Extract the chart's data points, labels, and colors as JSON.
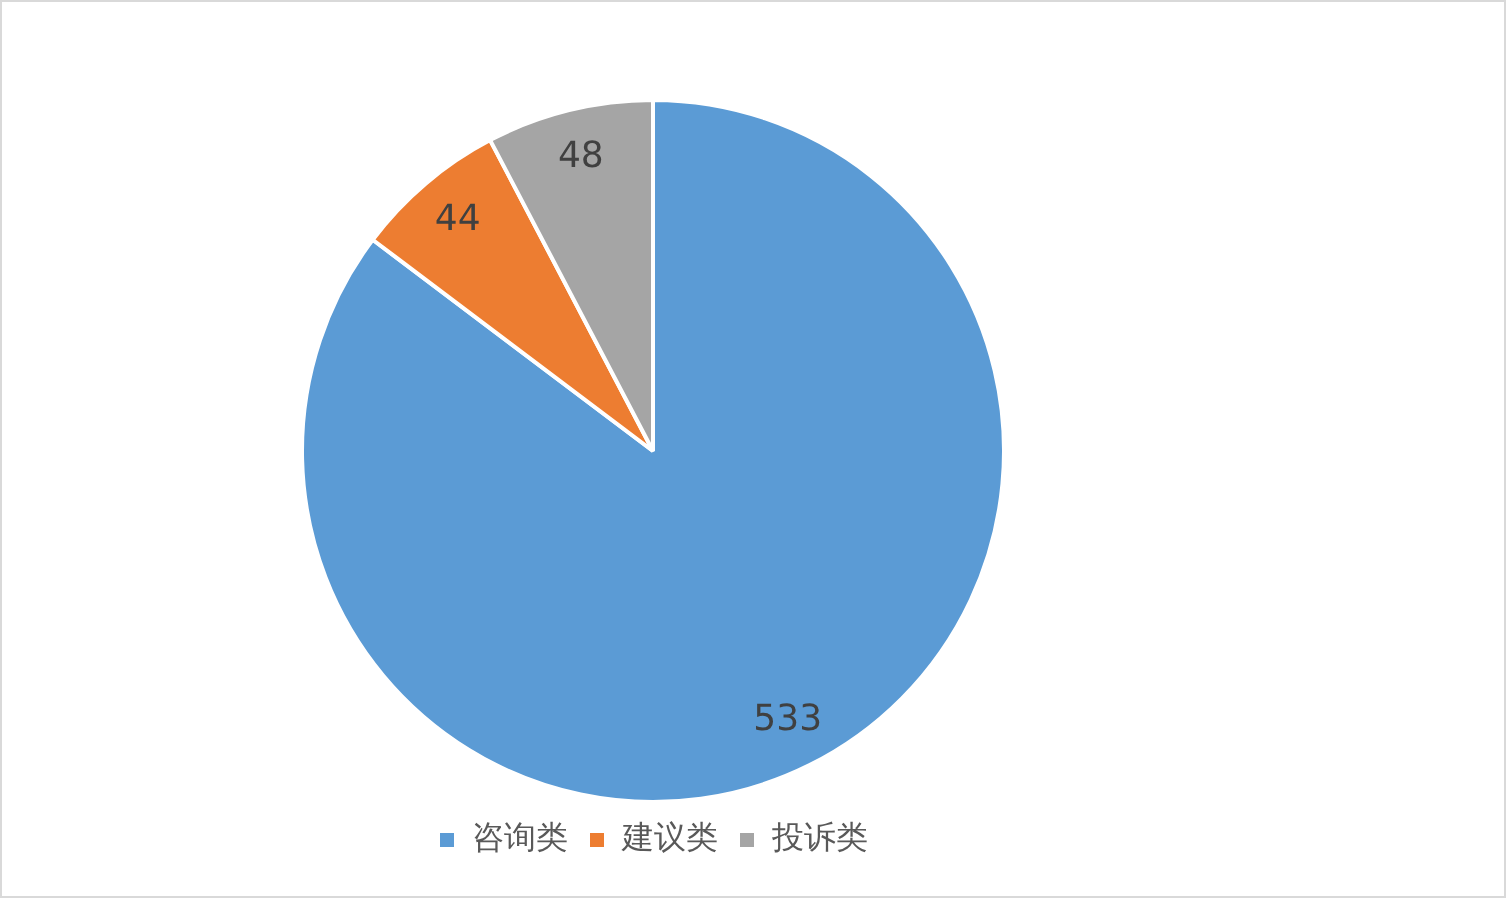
{
  "chart_data": {
    "type": "pie",
    "categories": [
      "咨询类",
      "建议类",
      "投诉类"
    ],
    "values": [
      533,
      44,
      48
    ],
    "colors": [
      "#5b9bd5",
      "#ed7d31",
      "#a5a5a5"
    ],
    "data_labels": true,
    "legend": "bottom"
  }
}
